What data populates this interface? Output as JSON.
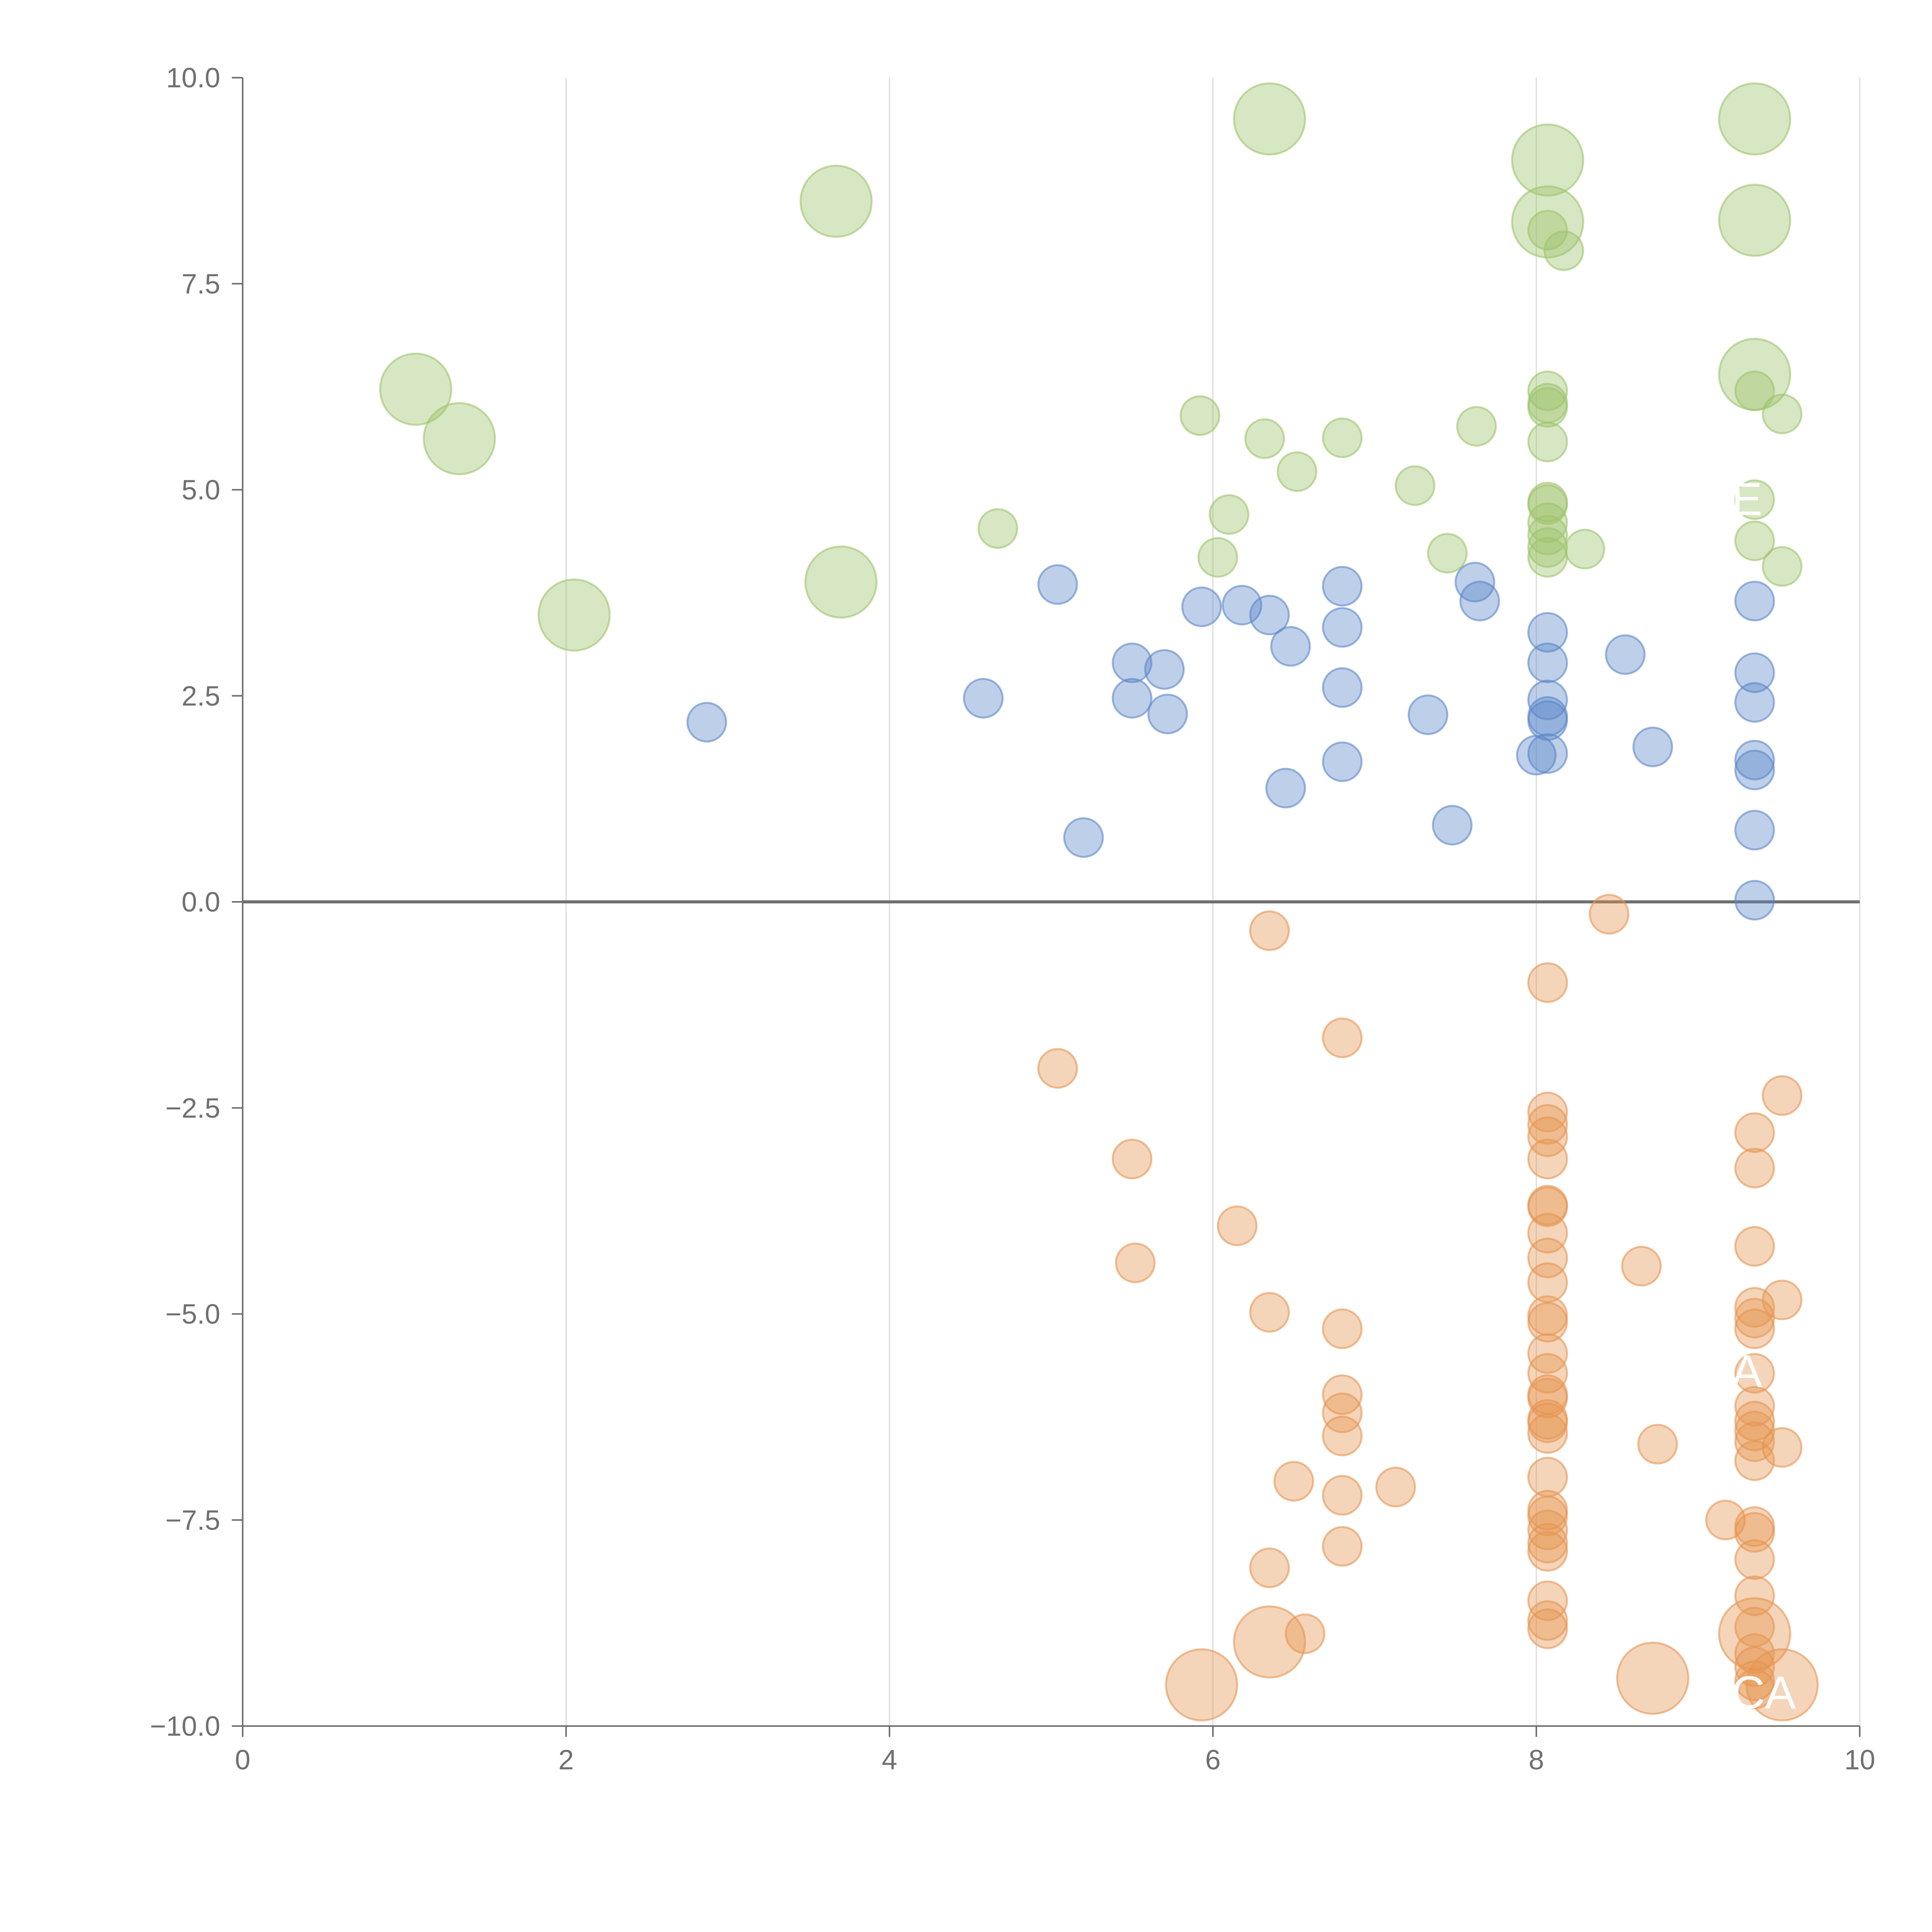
{
  "chart_data": {
    "type": "scatter",
    "title": "",
    "xlabel": "",
    "ylabel": "",
    "xlim": [
      0,
      10
    ],
    "ylim": [
      -10,
      10
    ],
    "x_ticks": [
      "0",
      "2",
      "4",
      "6",
      "8",
      "10"
    ],
    "y_ticks": [
      "10.0",
      "7.5",
      "5.0",
      "2.5",
      "0.0",
      "−2.5",
      "−5.0",
      "−7.5",
      "−10.0"
    ],
    "x_tick_values": [
      0,
      2,
      4,
      6,
      8,
      10
    ],
    "y_tick_values": [
      10,
      7.5,
      5,
      2.5,
      0,
      -2.5,
      -5,
      -7.5,
      -10
    ],
    "grid": "vertical",
    "colors": {
      "green": "#9dc46a",
      "blue": "#5b87c8",
      "orange": "#e69550"
    },
    "series": [
      {
        "name": "green",
        "points": [
          [
            1.07,
            6.22,
            2
          ],
          [
            1.34,
            5.62,
            2
          ],
          [
            2.05,
            3.48,
            2
          ],
          [
            3.67,
            8.5,
            2
          ],
          [
            3.7,
            3.88,
            2
          ],
          [
            6.35,
            9.5,
            2
          ],
          [
            8.07,
            9.0,
            2
          ],
          [
            8.07,
            8.25,
            2
          ],
          [
            8.07,
            8.15,
            1
          ],
          [
            8.17,
            7.9,
            1
          ],
          [
            9.35,
            9.5,
            2
          ],
          [
            9.35,
            8.27,
            2
          ],
          [
            9.35,
            6.4,
            2
          ],
          [
            9.35,
            6.2,
            1
          ],
          [
            9.52,
            5.92,
            1
          ],
          [
            9.35,
            4.38,
            1
          ],
          [
            9.52,
            4.07,
            1
          ],
          [
            9.35,
            4.88,
            1
          ],
          [
            4.67,
            4.53,
            1
          ],
          [
            5.92,
            5.9,
            1
          ],
          [
            6.03,
            4.18,
            1
          ],
          [
            6.1,
            4.7,
            1
          ],
          [
            6.32,
            5.62,
            1
          ],
          [
            6.52,
            5.22,
            1
          ],
          [
            6.8,
            5.63,
            1
          ],
          [
            7.25,
            5.05,
            1
          ],
          [
            7.45,
            4.23,
            1
          ],
          [
            7.63,
            5.77,
            1
          ],
          [
            8.07,
            6.2,
            1
          ],
          [
            8.07,
            6.05,
            1
          ],
          [
            8.07,
            6.0,
            1
          ],
          [
            8.07,
            5.58,
            1
          ],
          [
            8.07,
            4.85,
            1
          ],
          [
            8.07,
            4.82,
            1
          ],
          [
            8.07,
            4.6,
            1
          ],
          [
            8.07,
            4.45,
            1
          ],
          [
            8.07,
            4.3,
            1
          ],
          [
            8.07,
            4.18,
            1
          ],
          [
            8.3,
            4.28,
            1
          ]
        ]
      },
      {
        "name": "blue",
        "points": [
          [
            2.87,
            2.18,
            1
          ],
          [
            4.58,
            2.47,
            1
          ],
          [
            5.04,
            3.85,
            1
          ],
          [
            5.2,
            0.78,
            1
          ],
          [
            5.5,
            2.9,
            1
          ],
          [
            5.5,
            2.47,
            1
          ],
          [
            5.7,
            2.82,
            1
          ],
          [
            5.72,
            2.28,
            1
          ],
          [
            5.93,
            3.58,
            1
          ],
          [
            6.18,
            3.6,
            1
          ],
          [
            6.35,
            3.48,
            1
          ],
          [
            6.45,
            1.38,
            1
          ],
          [
            6.48,
            3.1,
            1
          ],
          [
            6.8,
            3.83,
            1
          ],
          [
            6.8,
            3.33,
            1
          ],
          [
            6.8,
            2.6,
            1
          ],
          [
            6.8,
            1.7,
            1
          ],
          [
            7.33,
            2.27,
            1
          ],
          [
            7.48,
            0.93,
            1
          ],
          [
            7.62,
            3.88,
            1
          ],
          [
            7.65,
            3.65,
            1
          ],
          [
            8.0,
            1.78,
            1
          ],
          [
            8.07,
            3.27,
            1
          ],
          [
            8.07,
            2.9,
            1
          ],
          [
            8.07,
            2.45,
            1
          ],
          [
            8.07,
            2.25,
            1
          ],
          [
            8.07,
            2.2,
            1
          ],
          [
            8.07,
            1.8,
            1
          ],
          [
            8.55,
            3.0,
            1
          ],
          [
            8.72,
            1.88,
            1
          ],
          [
            9.35,
            3.65,
            1
          ],
          [
            9.35,
            2.78,
            1
          ],
          [
            9.35,
            2.42,
            1
          ],
          [
            9.35,
            1.72,
            1
          ],
          [
            9.35,
            1.6,
            1
          ],
          [
            9.35,
            0.87,
            1
          ],
          [
            9.35,
            0.02,
            1
          ]
        ]
      },
      {
        "name": "orange",
        "points": [
          [
            5.04,
            -2.02,
            1
          ],
          [
            5.5,
            -3.12,
            1
          ],
          [
            5.52,
            -4.38,
            1
          ],
          [
            5.93,
            -9.5,
            2
          ],
          [
            6.15,
            -3.93,
            1
          ],
          [
            6.35,
            -0.35,
            1
          ],
          [
            6.35,
            -4.98,
            1
          ],
          [
            6.35,
            -8.08,
            1
          ],
          [
            6.35,
            -8.98,
            2
          ],
          [
            6.5,
            -7.03,
            1
          ],
          [
            6.57,
            -8.88,
            1
          ],
          [
            6.8,
            -1.65,
            1
          ],
          [
            6.8,
            -5.18,
            1
          ],
          [
            6.8,
            -5.98,
            1
          ],
          [
            6.8,
            -6.2,
            1
          ],
          [
            6.8,
            -6.48,
            1
          ],
          [
            6.8,
            -7.2,
            1
          ],
          [
            6.8,
            -7.82,
            1
          ],
          [
            7.13,
            -7.1,
            1
          ],
          [
            8.45,
            -0.15,
            1
          ],
          [
            8.07,
            -0.98,
            1
          ],
          [
            8.07,
            -2.55,
            1
          ],
          [
            8.07,
            -2.7,
            1
          ],
          [
            8.07,
            -2.85,
            1
          ],
          [
            8.07,
            -3.12,
            1
          ],
          [
            8.07,
            -3.68,
            1
          ],
          [
            8.07,
            -3.7,
            1
          ],
          [
            8.07,
            -4.02,
            1
          ],
          [
            8.07,
            -4.32,
            1
          ],
          [
            8.07,
            -4.62,
            1
          ],
          [
            8.07,
            -5.02,
            1
          ],
          [
            8.07,
            -5.1,
            1
          ],
          [
            8.07,
            -5.48,
            1
          ],
          [
            8.07,
            -5.72,
            1
          ],
          [
            8.07,
            -5.98,
            1
          ],
          [
            8.07,
            -6.02,
            1
          ],
          [
            8.07,
            -6.28,
            1
          ],
          [
            8.07,
            -6.32,
            1
          ],
          [
            8.07,
            -6.45,
            1
          ],
          [
            8.07,
            -6.98,
            1
          ],
          [
            8.07,
            -7.38,
            1
          ],
          [
            8.07,
            -7.45,
            1
          ],
          [
            8.07,
            -7.62,
            1
          ],
          [
            8.07,
            -7.78,
            1
          ],
          [
            8.07,
            -7.88,
            1
          ],
          [
            8.07,
            -8.48,
            1
          ],
          [
            8.07,
            -8.72,
            1
          ],
          [
            8.07,
            -8.82,
            1
          ],
          [
            8.65,
            -4.42,
            1
          ],
          [
            8.75,
            -6.58,
            1
          ],
          [
            8.72,
            -9.42,
            2
          ],
          [
            9.17,
            -7.5,
            1
          ],
          [
            9.35,
            -2.8,
            1
          ],
          [
            9.35,
            -3.23,
            1
          ],
          [
            9.35,
            -4.18,
            1
          ],
          [
            9.35,
            -4.92,
            1
          ],
          [
            9.35,
            -5.05,
            1
          ],
          [
            9.35,
            -5.18,
            1
          ],
          [
            9.35,
            -5.72,
            1
          ],
          [
            9.35,
            -6.12,
            1
          ],
          [
            9.35,
            -6.3,
            1
          ],
          [
            9.35,
            -6.42,
            1
          ],
          [
            9.35,
            -6.55,
            1
          ],
          [
            9.35,
            -6.78,
            1
          ],
          [
            9.35,
            -7.58,
            1
          ],
          [
            9.35,
            -7.65,
            1
          ],
          [
            9.35,
            -7.98,
            1
          ],
          [
            9.35,
            -8.42,
            1
          ],
          [
            9.35,
            -8.8,
            1
          ],
          [
            9.35,
            -8.88,
            2
          ],
          [
            9.35,
            -9.12,
            1
          ],
          [
            9.35,
            -9.28,
            1
          ],
          [
            9.35,
            -9.45,
            1
          ],
          [
            9.35,
            -9.55,
            1
          ],
          [
            9.52,
            -2.35,
            1
          ],
          [
            9.52,
            -4.83,
            1
          ],
          [
            9.52,
            -6.62,
            1
          ],
          [
            9.52,
            -9.5,
            2
          ]
        ]
      }
    ],
    "annotations": [
      {
        "text": "A",
        "x": 9.35,
        "y": -5.7
      },
      {
        "text": "CA",
        "x": 9.35,
        "y": -9.6
      },
      {
        "text": "E",
        "x": 9.35,
        "y": 4.88
      }
    ]
  }
}
